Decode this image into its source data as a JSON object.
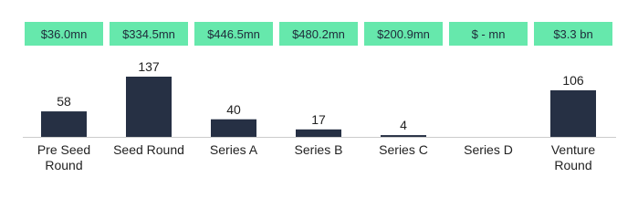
{
  "chart_data": {
    "type": "bar",
    "categories": [
      "Pre Seed Round",
      "Seed Round",
      "Series A",
      "Series B",
      "Series C",
      "Series D",
      "Venture Round"
    ],
    "values": [
      58,
      137,
      40,
      17,
      4,
      0,
      106
    ],
    "annotations": [
      "$36.0mn",
      "$334.5mn",
      "$446.5mn",
      "$480.2mn",
      "$200.9mn",
      "$ - mn",
      "$3.3 bn"
    ],
    "color": "#263044",
    "annotation_color": "#66e8ac"
  }
}
